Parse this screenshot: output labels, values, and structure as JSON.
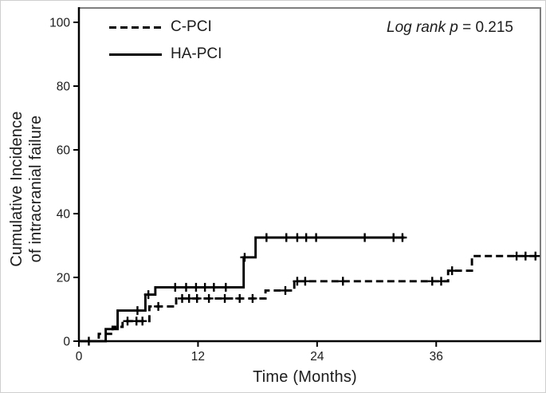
{
  "figure": {
    "ylabel_line1": "Cumulative Incidence",
    "ylabel_line2": "of intracranial failure",
    "xlabel": "Time (Months)",
    "annotation": {
      "italic": "Log rank p",
      "rest": " = 0.215"
    },
    "legend": [
      {
        "label": "C-PCI",
        "style": "dashed"
      },
      {
        "label": "HA-PCI",
        "style": "solid"
      }
    ]
  },
  "chart_data": {
    "type": "line",
    "step": true,
    "title": "",
    "xlabel": "Time (Months)",
    "ylabel": "Cumulative Incidence of intracranial failure",
    "xlim": [
      0,
      46.5
    ],
    "ylim": [
      0,
      100
    ],
    "xticks": [
      0,
      12,
      24,
      36
    ],
    "yticks": [
      0,
      20,
      40,
      60,
      80,
      100
    ],
    "grid": false,
    "legend_position": "top-left",
    "annotation": "Log rank p = 0.215",
    "line_color": "#000000",
    "series": [
      {
        "name": "C-PCI",
        "line": "dashed",
        "end_month": 46.5,
        "steps": [
          [
            0,
            0
          ],
          [
            2.0,
            2.3
          ],
          [
            3.4,
            4.5
          ],
          [
            4.4,
            6.3
          ],
          [
            7.1,
            10.9
          ],
          [
            9.8,
            13.4
          ],
          [
            18.8,
            15.9
          ],
          [
            21.7,
            18.8
          ],
          [
            37.2,
            22.1
          ],
          [
            39.6,
            26.7
          ]
        ],
        "censors": [
          [
            1.0,
            0
          ],
          [
            4.9,
            6.3
          ],
          [
            5.8,
            6.3
          ],
          [
            6.4,
            6.3
          ],
          [
            8.0,
            10.9
          ],
          [
            10.4,
            13.4
          ],
          [
            11.1,
            13.4
          ],
          [
            11.9,
            13.4
          ],
          [
            13.1,
            13.4
          ],
          [
            14.7,
            13.4
          ],
          [
            16.2,
            13.4
          ],
          [
            17.5,
            13.4
          ],
          [
            20.8,
            15.9
          ],
          [
            22.0,
            18.8
          ],
          [
            22.8,
            18.8
          ],
          [
            26.6,
            18.8
          ],
          [
            35.6,
            18.8
          ],
          [
            36.5,
            18.8
          ],
          [
            37.6,
            22.1
          ],
          [
            44.1,
            26.7
          ],
          [
            45.0,
            26.7
          ],
          [
            46.0,
            26.7
          ]
        ]
      },
      {
        "name": "HA-PCI",
        "line": "solid",
        "end_month": 32.8,
        "steps": [
          [
            0,
            0
          ],
          [
            2.7,
            3.8
          ],
          [
            3.9,
            9.6
          ],
          [
            6.7,
            14.6
          ],
          [
            7.7,
            16.9
          ],
          [
            16.6,
            26.3
          ],
          [
            17.8,
            32.5
          ]
        ],
        "censors": [
          [
            5.9,
            9.6
          ],
          [
            7.0,
            14.6
          ],
          [
            9.7,
            16.9
          ],
          [
            10.8,
            16.9
          ],
          [
            11.8,
            16.9
          ],
          [
            12.7,
            16.9
          ],
          [
            13.6,
            16.9
          ],
          [
            14.8,
            16.9
          ],
          [
            16.7,
            26.3
          ],
          [
            18.9,
            32.5
          ],
          [
            20.9,
            32.5
          ],
          [
            22.0,
            32.5
          ],
          [
            22.9,
            32.5
          ],
          [
            23.9,
            32.5
          ],
          [
            28.8,
            32.5
          ],
          [
            31.7,
            32.5
          ],
          [
            32.6,
            32.5
          ]
        ]
      }
    ]
  }
}
